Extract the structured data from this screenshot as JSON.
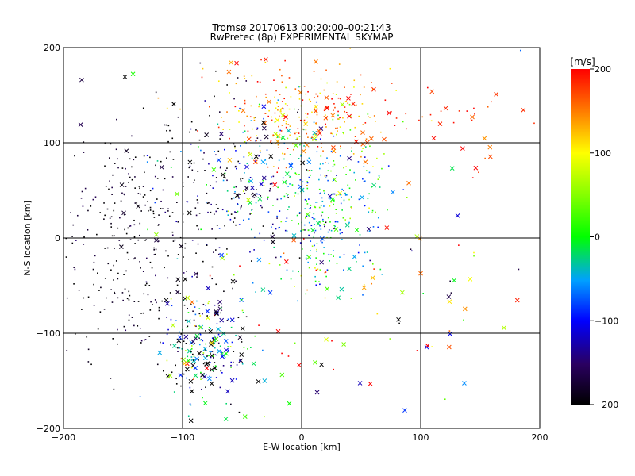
{
  "chart_data": {
    "type": "scatter",
    "title": "Tromsø 20170613 00:20:00–00:21:43",
    "subtitle": "RwPretec (8p) EXPERIMENTAL SKYMAP",
    "xlabel": "E-W location [km]",
    "ylabel": "N-S location [km]",
    "xlim": [
      -200,
      200
    ],
    "ylim": [
      -200,
      200
    ],
    "xticks": [
      "−200",
      "−100",
      "0",
      "100",
      "200"
    ],
    "yticks": [
      "−200",
      "−100",
      "0",
      "100",
      "200"
    ],
    "grid": true,
    "colorbar": {
      "label": "[m/s]",
      "range": [
        -200,
        200
      ],
      "ticks": [
        "200",
        "100",
        "0",
        "−100",
        "−200"
      ]
    },
    "clusters": [
      {
        "cx": -130,
        "cy": 20,
        "sx": 45,
        "sy": 55,
        "v": -190,
        "vs": 20,
        "n": 260,
        "xfrac": 0.06
      },
      {
        "cx": 10,
        "cy": 40,
        "sx": 30,
        "sy": 40,
        "v": -30,
        "vs": 55,
        "n": 360,
        "xfrac": 0.1
      },
      {
        "cx": 0,
        "cy": 125,
        "sx": 40,
        "sy": 25,
        "v": 150,
        "vs": 40,
        "n": 300,
        "xfrac": 0.14
      },
      {
        "cx": -80,
        "cy": -115,
        "sx": 18,
        "sy": 30,
        "v": -90,
        "vs": 110,
        "n": 260,
        "xfrac": 0.3
      },
      {
        "cx": -60,
        "cy": 60,
        "sx": 30,
        "sy": 45,
        "v": -140,
        "vs": 70,
        "n": 200,
        "xfrac": 0.1
      },
      {
        "cx": 50,
        "cy": -60,
        "sx": 70,
        "sy": 60,
        "v": 60,
        "vs": 140,
        "n": 110,
        "xfrac": 0.4
      },
      {
        "cx": 140,
        "cy": 120,
        "sx": 40,
        "sy": 25,
        "v": 185,
        "vs": 20,
        "n": 30,
        "xfrac": 0.35
      },
      {
        "cx": -150,
        "cy": -60,
        "sx": 30,
        "sy": 40,
        "v": -190,
        "vs": 20,
        "n": 90,
        "xfrac": 0.05
      }
    ]
  }
}
